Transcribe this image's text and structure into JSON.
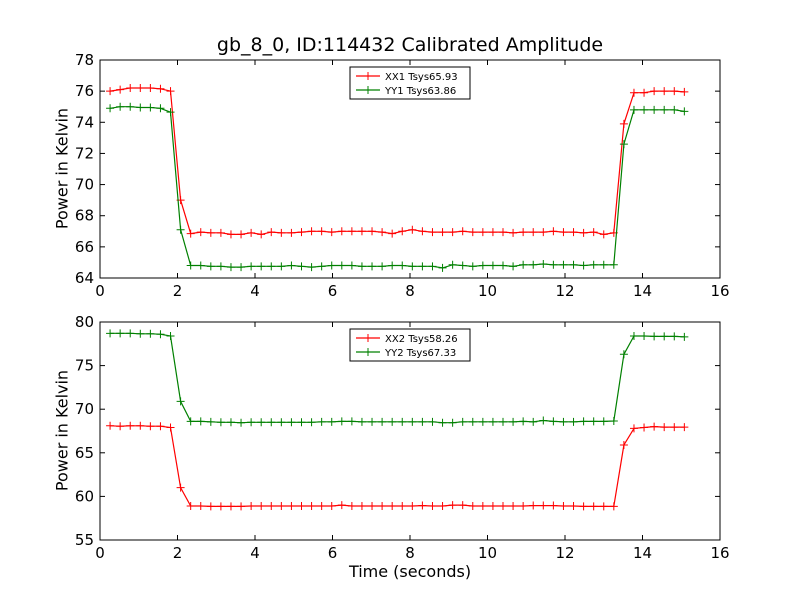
{
  "title": "gb_8_0, ID:114432 Calibrated Amplitude",
  "chart_data": [
    {
      "type": "line",
      "ylabel": "Power in Kelvin",
      "xlabel": "",
      "xlim": [
        0,
        16
      ],
      "ylim": [
        64,
        78
      ],
      "xticks": [
        "0",
        "2",
        "4",
        "6",
        "8",
        "10",
        "12",
        "14",
        "16"
      ],
      "yticks": [
        "64",
        "66",
        "68",
        "70",
        "72",
        "74",
        "76",
        "78"
      ],
      "legend_position": "top-center",
      "x": [
        0.26,
        0.52,
        0.78,
        1.04,
        1.3,
        1.56,
        1.82,
        2.08,
        2.34,
        2.6,
        2.86,
        3.12,
        3.38,
        3.64,
        3.9,
        4.16,
        4.42,
        4.68,
        4.94,
        5.2,
        5.46,
        5.72,
        5.98,
        6.24,
        6.5,
        6.76,
        7.02,
        7.28,
        7.54,
        7.8,
        8.06,
        8.32,
        8.58,
        8.84,
        9.1,
        9.36,
        9.62,
        9.88,
        10.14,
        10.4,
        10.66,
        10.92,
        11.18,
        11.44,
        11.7,
        11.96,
        12.22,
        12.48,
        12.74,
        13.0,
        13.26,
        13.52,
        13.78,
        14.04,
        14.3,
        14.56,
        14.82,
        15.08
      ],
      "series": [
        {
          "name": "XX1 Tsys65.93",
          "color": "#ff0000",
          "values": [
            76.0,
            76.1,
            76.2,
            76.2,
            76.2,
            76.15,
            76.0,
            69.0,
            66.85,
            66.95,
            66.9,
            66.9,
            66.8,
            66.8,
            66.9,
            66.8,
            66.95,
            66.9,
            66.9,
            66.95,
            67.0,
            67.0,
            66.95,
            67.0,
            67.0,
            67.0,
            67.0,
            66.95,
            66.85,
            67.0,
            67.1,
            67.0,
            66.95,
            66.95,
            66.95,
            67.0,
            66.95,
            66.95,
            66.95,
            66.95,
            66.9,
            66.95,
            66.95,
            66.95,
            67.0,
            66.95,
            66.95,
            66.9,
            66.95,
            66.8,
            66.9,
            73.9,
            75.9,
            75.9,
            76.0,
            76.0,
            76.0,
            75.95
          ]
        },
        {
          "name": "YY1 Tsys63.86",
          "color": "#008000",
          "values": [
            74.9,
            75.0,
            75.0,
            74.95,
            74.95,
            74.9,
            74.65,
            67.1,
            64.8,
            64.8,
            64.75,
            64.75,
            64.7,
            64.7,
            64.75,
            64.75,
            64.75,
            64.75,
            64.8,
            64.75,
            64.7,
            64.75,
            64.8,
            64.8,
            64.8,
            64.75,
            64.75,
            64.75,
            64.8,
            64.8,
            64.75,
            64.75,
            64.75,
            64.65,
            64.85,
            64.8,
            64.75,
            64.8,
            64.8,
            64.8,
            64.75,
            64.85,
            64.85,
            64.9,
            64.85,
            64.85,
            64.85,
            64.8,
            64.85,
            64.85,
            64.85,
            72.6,
            74.8,
            74.8,
            74.8,
            74.8,
            74.8,
            74.7
          ]
        }
      ]
    },
    {
      "type": "line",
      "ylabel": "Power in Kelvin",
      "xlabel": "Time (seconds)",
      "xlim": [
        0,
        16
      ],
      "ylim": [
        55,
        80
      ],
      "xticks": [
        "0",
        "2",
        "4",
        "6",
        "8",
        "10",
        "12",
        "14",
        "16"
      ],
      "yticks": [
        "55",
        "60",
        "65",
        "70",
        "75",
        "80"
      ],
      "legend_position": "top-center",
      "x": [
        0.26,
        0.52,
        0.78,
        1.04,
        1.3,
        1.56,
        1.82,
        2.08,
        2.34,
        2.6,
        2.86,
        3.12,
        3.38,
        3.64,
        3.9,
        4.16,
        4.42,
        4.68,
        4.94,
        5.2,
        5.46,
        5.72,
        5.98,
        6.24,
        6.5,
        6.76,
        7.02,
        7.28,
        7.54,
        7.8,
        8.06,
        8.32,
        8.58,
        8.84,
        9.1,
        9.36,
        9.62,
        9.88,
        10.14,
        10.4,
        10.66,
        10.92,
        11.18,
        11.44,
        11.7,
        11.96,
        12.22,
        12.48,
        12.74,
        13.0,
        13.26,
        13.52,
        13.78,
        14.04,
        14.3,
        14.56,
        14.82,
        15.08
      ],
      "series": [
        {
          "name": "XX2 Tsys58.26",
          "color": "#ff0000",
          "values": [
            68.1,
            68.05,
            68.1,
            68.1,
            68.05,
            68.05,
            67.9,
            61.0,
            58.9,
            58.9,
            58.85,
            58.85,
            58.85,
            58.85,
            58.9,
            58.9,
            58.9,
            58.9,
            58.9,
            58.9,
            58.9,
            58.9,
            58.9,
            59.0,
            58.9,
            58.9,
            58.9,
            58.9,
            58.9,
            58.9,
            58.9,
            58.95,
            58.9,
            58.9,
            59.0,
            59.0,
            58.9,
            58.9,
            58.9,
            58.9,
            58.9,
            58.9,
            58.95,
            58.95,
            58.95,
            58.9,
            58.9,
            58.85,
            58.85,
            58.85,
            58.85,
            65.9,
            67.8,
            67.9,
            68.0,
            67.95,
            67.95,
            67.95
          ]
        },
        {
          "name": "YY2 Tsys67.33",
          "color": "#008000",
          "values": [
            78.7,
            78.7,
            78.7,
            78.65,
            78.65,
            78.6,
            78.4,
            70.9,
            68.6,
            68.6,
            68.55,
            68.5,
            68.5,
            68.45,
            68.5,
            68.5,
            68.5,
            68.5,
            68.5,
            68.5,
            68.5,
            68.55,
            68.55,
            68.6,
            68.6,
            68.55,
            68.55,
            68.55,
            68.55,
            68.55,
            68.55,
            68.55,
            68.55,
            68.45,
            68.45,
            68.55,
            68.55,
            68.55,
            68.55,
            68.55,
            68.55,
            68.6,
            68.55,
            68.7,
            68.6,
            68.55,
            68.55,
            68.6,
            68.6,
            68.6,
            68.65,
            76.3,
            78.4,
            78.4,
            78.35,
            78.35,
            78.35,
            78.3
          ]
        }
      ]
    }
  ]
}
